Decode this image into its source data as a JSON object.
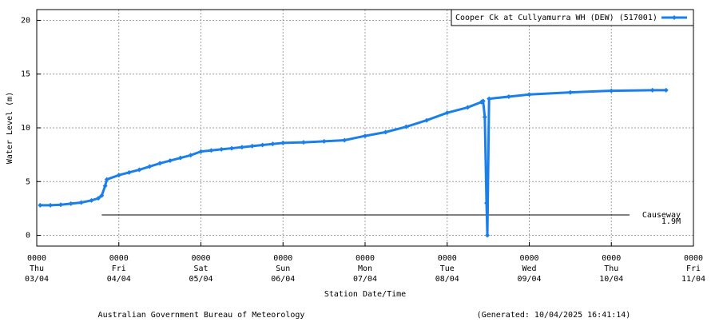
{
  "chart_data": {
    "type": "line",
    "y_label": "Water Level (m)",
    "x_label": "Station Date/Time",
    "footer_left": "Australian Government Bureau of Meteorology",
    "footer_right": "(Generated: 10/04/2025 16:41:14)",
    "ylim": [
      -1,
      21
    ],
    "yticks": [
      0,
      5,
      10,
      15,
      20
    ],
    "xlim": [
      "03/04 0000",
      "11/04 0000"
    ],
    "xticks": [
      {
        "value": "03/04 0000",
        "label": [
          "0000",
          "Thu",
          "03/04"
        ]
      },
      {
        "value": "04/04 0000",
        "label": [
          "0000",
          "Fri",
          "04/04"
        ]
      },
      {
        "value": "05/04 0000",
        "label": [
          "0000",
          "Sat",
          "05/04"
        ]
      },
      {
        "value": "06/04 0000",
        "label": [
          "0000",
          "Sun",
          "06/04"
        ]
      },
      {
        "value": "07/04 0000",
        "label": [
          "0000",
          "Mon",
          "07/04"
        ]
      },
      {
        "value": "08/04 0000",
        "label": [
          "0000",
          "Tue",
          "08/04"
        ]
      },
      {
        "value": "09/04 0000",
        "label": [
          "0000",
          "Wed",
          "09/04"
        ]
      },
      {
        "value": "10/04 0000",
        "label": [
          "0000",
          "Thu",
          "10/04"
        ]
      },
      {
        "value": "11/04 0000",
        "label": [
          "0000",
          "Fri",
          "11/04"
        ]
      }
    ],
    "grid": true,
    "legend": "top-right",
    "x": [
      "03/04 0100",
      "03/04 0400",
      "03/04 0700",
      "03/04 1000",
      "03/04 1300",
      "03/04 1600",
      "03/04 1800",
      "03/04 1900",
      "03/04 2000",
      "03/04 2030",
      "04/04 0000",
      "04/04 0300",
      "04/04 0600",
      "04/04 0900",
      "04/04 1200",
      "04/04 1500",
      "04/04 1800",
      "04/04 2100",
      "05/04 0000",
      "05/04 0300",
      "05/04 0600",
      "05/04 0900",
      "05/04 1200",
      "05/04 1500",
      "05/04 1800",
      "05/04 2100",
      "06/04 0000",
      "06/04 0600",
      "06/04 1200",
      "06/04 1800",
      "07/04 0000",
      "07/04 0600",
      "07/04 1200",
      "07/04 1800",
      "08/04 0000",
      "08/04 0600",
      "08/04 1000",
      "08/04 1030",
      "08/04 1100",
      "08/04 1130",
      "08/04 1145",
      "08/04 1215",
      "08/04 1800",
      "09/04 0000",
      "09/04 1200",
      "10/04 0000",
      "10/04 1200",
      "10/04 1600"
    ],
    "series": [
      {
        "name": "Cooper Ck at Cullyamurra WH (DEW) (517001)",
        "color": "#1a7fe8",
        "values": [
          2.8,
          2.8,
          2.85,
          2.95,
          3.05,
          3.25,
          3.45,
          3.7,
          4.6,
          5.2,
          5.6,
          5.85,
          6.1,
          6.4,
          6.7,
          6.95,
          7.2,
          7.45,
          7.8,
          7.9,
          8.0,
          8.1,
          8.2,
          8.3,
          8.4,
          8.5,
          8.6,
          8.65,
          8.75,
          8.85,
          9.25,
          9.6,
          10.1,
          10.7,
          11.4,
          11.9,
          12.4,
          12.5,
          11.0,
          3.0,
          0,
          12.7,
          12.9,
          13.1,
          13.3,
          13.45,
          13.5,
          13.5
        ]
      }
    ],
    "annotations": [
      {
        "label": "Causeway",
        "value_label": "1.9M",
        "value": 1.9,
        "x": [
          "03/04 1900",
          "10/04 0520"
        ]
      }
    ]
  }
}
